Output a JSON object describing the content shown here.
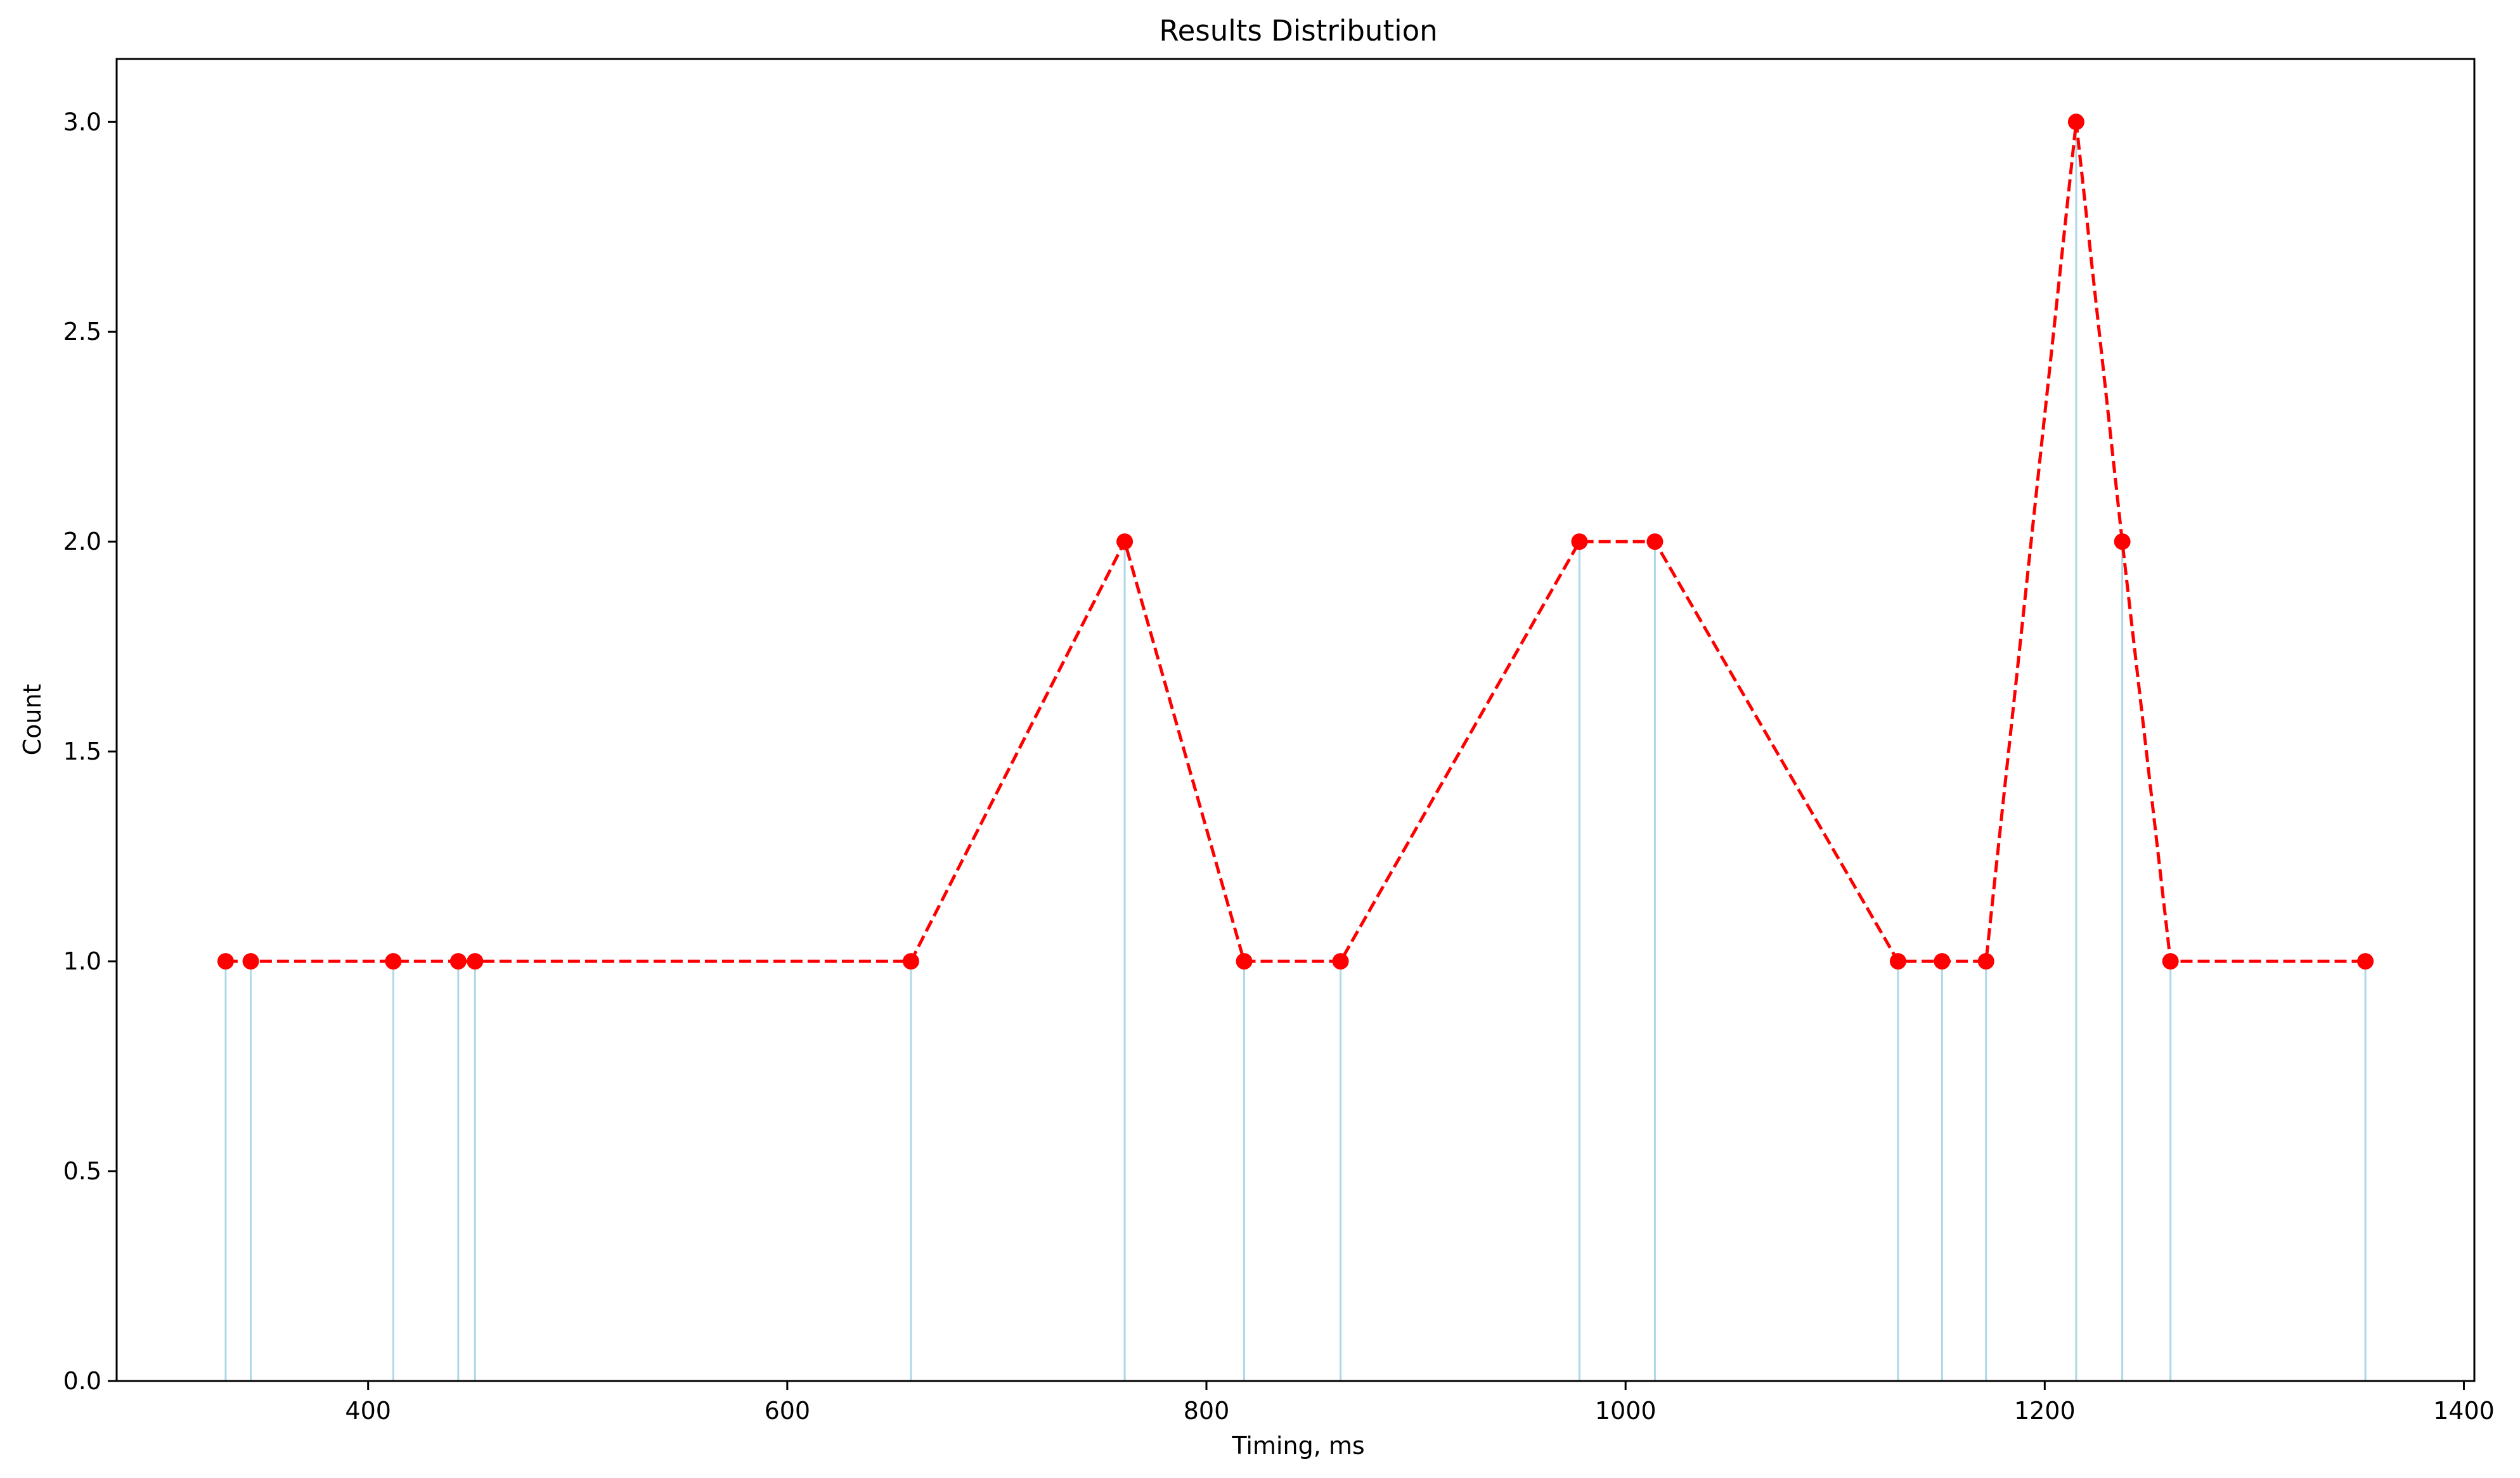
{
  "chart_data": {
    "type": "line",
    "title": "Results Distribution",
    "xlabel": "Timing, ms",
    "ylabel": "Count",
    "xlim": [
      280,
      1405
    ],
    "ylim": [
      0,
      3.15
    ],
    "xticks": [
      400,
      600,
      800,
      1000,
      1200,
      1400
    ],
    "xtick_labels": [
      "400",
      "600",
      "800",
      "1000",
      "1200",
      "1400"
    ],
    "yticks": [
      0,
      0.5,
      1,
      1.5,
      2,
      2.5,
      3
    ],
    "ytick_labels": [
      "0.0",
      "0.5",
      "1.0",
      "1.5",
      "2.0",
      "2.5",
      "3.0"
    ],
    "grid": false,
    "series": [
      {
        "style": "red-dashed-line-with-circle-markers",
        "color": "#ff0000",
        "stem_color": "#add8e6",
        "points": [
          {
            "x": 332,
            "y": 1
          },
          {
            "x": 344,
            "y": 1
          },
          {
            "x": 412,
            "y": 1
          },
          {
            "x": 443,
            "y": 1
          },
          {
            "x": 451,
            "y": 1
          },
          {
            "x": 659,
            "y": 1
          },
          {
            "x": 761,
            "y": 2
          },
          {
            "x": 818,
            "y": 1
          },
          {
            "x": 864,
            "y": 1
          },
          {
            "x": 978,
            "y": 2
          },
          {
            "x": 1014,
            "y": 2
          },
          {
            "x": 1130,
            "y": 1
          },
          {
            "x": 1151,
            "y": 1
          },
          {
            "x": 1172,
            "y": 1
          },
          {
            "x": 1215,
            "y": 3
          },
          {
            "x": 1237,
            "y": 2
          },
          {
            "x": 1260,
            "y": 1
          },
          {
            "x": 1353,
            "y": 1
          }
        ]
      }
    ]
  }
}
